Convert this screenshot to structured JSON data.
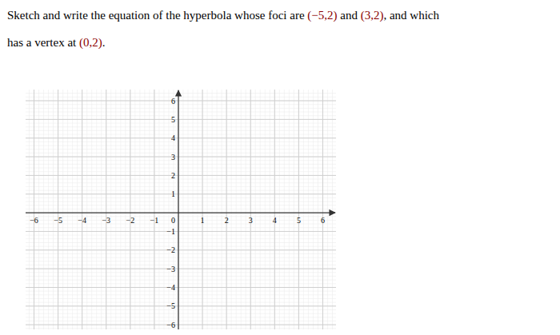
{
  "chart_data": {
    "type": "coordinate_plane",
    "xlim": [
      -6.35,
      6.55
    ],
    "ylim": [
      -6.25,
      6.6
    ],
    "xticks": [
      -6,
      -5,
      -4,
      -3,
      -2,
      -1,
      0,
      1,
      2,
      3,
      4,
      5,
      6
    ],
    "yticks": [
      -6,
      -5,
      -4,
      -3,
      -2,
      -1,
      1,
      2,
      3,
      4,
      5,
      6
    ],
    "grid": true,
    "annotations": [
      {
        "segments": [
          {
            "text": "Sketch and write the equation of the hyperbola whose foci are ",
            "color": "#000000"
          },
          {
            "text": "(−5,2)",
            "color": "#8B0000"
          },
          {
            "text": " and ",
            "color": "#000000"
          },
          {
            "text": "(3,2)",
            "color": "#8B0000"
          },
          {
            "text": ", and which",
            "color": "#000000"
          }
        ]
      },
      {
        "segments": [
          {
            "text": "has a vertex at ",
            "color": "#000000"
          },
          {
            "text": "(0,2)",
            "color": "#8B0000"
          },
          {
            "text": ".",
            "color": "#000000"
          }
        ]
      }
    ]
  }
}
